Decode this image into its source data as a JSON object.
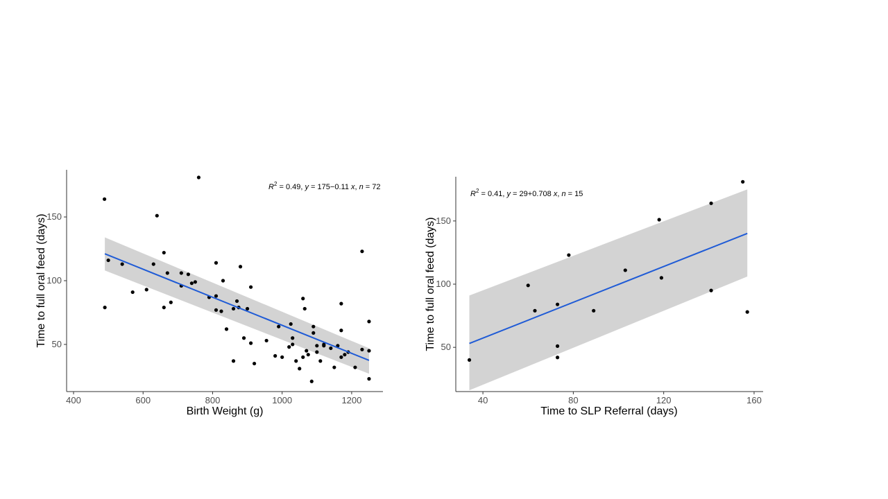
{
  "chart_data": [
    {
      "type": "scatter",
      "xlabel": "Birth Weight (g)",
      "ylabel": "Time to full oral feed (days)",
      "stat": {
        "r2": "0.49",
        "a": "175",
        "sign": "−",
        "b": "0.11",
        "n": "72"
      },
      "xlim": [
        380,
        1290
      ],
      "ylim": [
        13,
        187
      ],
      "xticks": [
        400,
        600,
        800,
        1000,
        1200
      ],
      "yticks": [
        50,
        100,
        150
      ],
      "grid": false,
      "fit": {
        "x_start": 490,
        "x_end": 1250,
        "slope": -0.11,
        "intercept": 175
      },
      "band": {
        "lower_start": 108,
        "lower_end": 27,
        "upper_start": 134,
        "upper_end": 47
      },
      "points": [
        [
          489,
          164
        ],
        [
          490,
          79
        ],
        [
          500,
          116
        ],
        [
          540,
          113
        ],
        [
          570,
          91
        ],
        [
          610,
          93
        ],
        [
          630,
          113
        ],
        [
          640,
          151
        ],
        [
          660,
          122
        ],
        [
          660,
          79
        ],
        [
          670,
          106
        ],
        [
          680,
          83
        ],
        [
          710,
          96
        ],
        [
          710,
          106
        ],
        [
          730,
          105
        ],
        [
          740,
          98
        ],
        [
          750,
          99
        ],
        [
          760,
          181
        ],
        [
          790,
          87
        ],
        [
          810,
          114
        ],
        [
          810,
          88
        ],
        [
          810,
          77
        ],
        [
          830,
          100
        ],
        [
          825,
          76
        ],
        [
          840,
          62
        ],
        [
          860,
          78
        ],
        [
          860,
          37
        ],
        [
          870,
          84
        ],
        [
          875,
          79
        ],
        [
          880,
          111
        ],
        [
          890,
          55
        ],
        [
          900,
          78
        ],
        [
          910,
          95
        ],
        [
          910,
          51
        ],
        [
          920,
          35
        ],
        [
          955,
          53
        ],
        [
          980,
          41
        ],
        [
          990,
          64
        ],
        [
          1000,
          40
        ],
        [
          1020,
          48
        ],
        [
          1025,
          66
        ],
        [
          1030,
          55
        ],
        [
          1030,
          50
        ],
        [
          1040,
          37
        ],
        [
          1050,
          31
        ],
        [
          1060,
          86
        ],
        [
          1060,
          40
        ],
        [
          1065,
          78
        ],
        [
          1070,
          45
        ],
        [
          1075,
          42
        ],
        [
          1085,
          21
        ],
        [
          1090,
          64
        ],
        [
          1090,
          59
        ],
        [
          1100,
          49
        ],
        [
          1100,
          44
        ],
        [
          1110,
          37
        ],
        [
          1120,
          49
        ],
        [
          1140,
          47
        ],
        [
          1150,
          32
        ],
        [
          1160,
          49
        ],
        [
          1170,
          82
        ],
        [
          1170,
          61
        ],
        [
          1170,
          40
        ],
        [
          1180,
          42
        ],
        [
          1190,
          44
        ],
        [
          1210,
          32
        ],
        [
          1230,
          123
        ],
        [
          1230,
          46
        ],
        [
          1250,
          68
        ],
        [
          1250,
          23
        ],
        [
          1250,
          45
        ],
        [
          1120,
          50
        ]
      ]
    },
    {
      "type": "scatter",
      "xlabel": "Time to SLP Referral (days)",
      "ylabel": "Time to full oral feed (days)",
      "stat": {
        "r2": "0.41",
        "a": "29",
        "sign": "+",
        "b": "0.708",
        "n": "15"
      },
      "xlim": [
        28,
        164
      ],
      "ylim": [
        15,
        185
      ],
      "xticks": [
        40,
        80,
        120,
        160
      ],
      "yticks": [
        50,
        100,
        150
      ],
      "grid": false,
      "fit": {
        "x_start": 34,
        "x_end": 157,
        "slope": 0.708,
        "intercept": 29
      },
      "band": {
        "lower_start": 16,
        "lower_end": 106,
        "upper_start": 91,
        "upper_end": 175
      },
      "points": [
        [
          34,
          40
        ],
        [
          60,
          99
        ],
        [
          63,
          79
        ],
        [
          73,
          84
        ],
        [
          73,
          51
        ],
        [
          73,
          42
        ],
        [
          78,
          123
        ],
        [
          89,
          79
        ],
        [
          103,
          111
        ],
        [
          118,
          151
        ],
        [
          119,
          105
        ],
        [
          141,
          164
        ],
        [
          141,
          95
        ],
        [
          155,
          181
        ],
        [
          157,
          78
        ]
      ]
    }
  ]
}
